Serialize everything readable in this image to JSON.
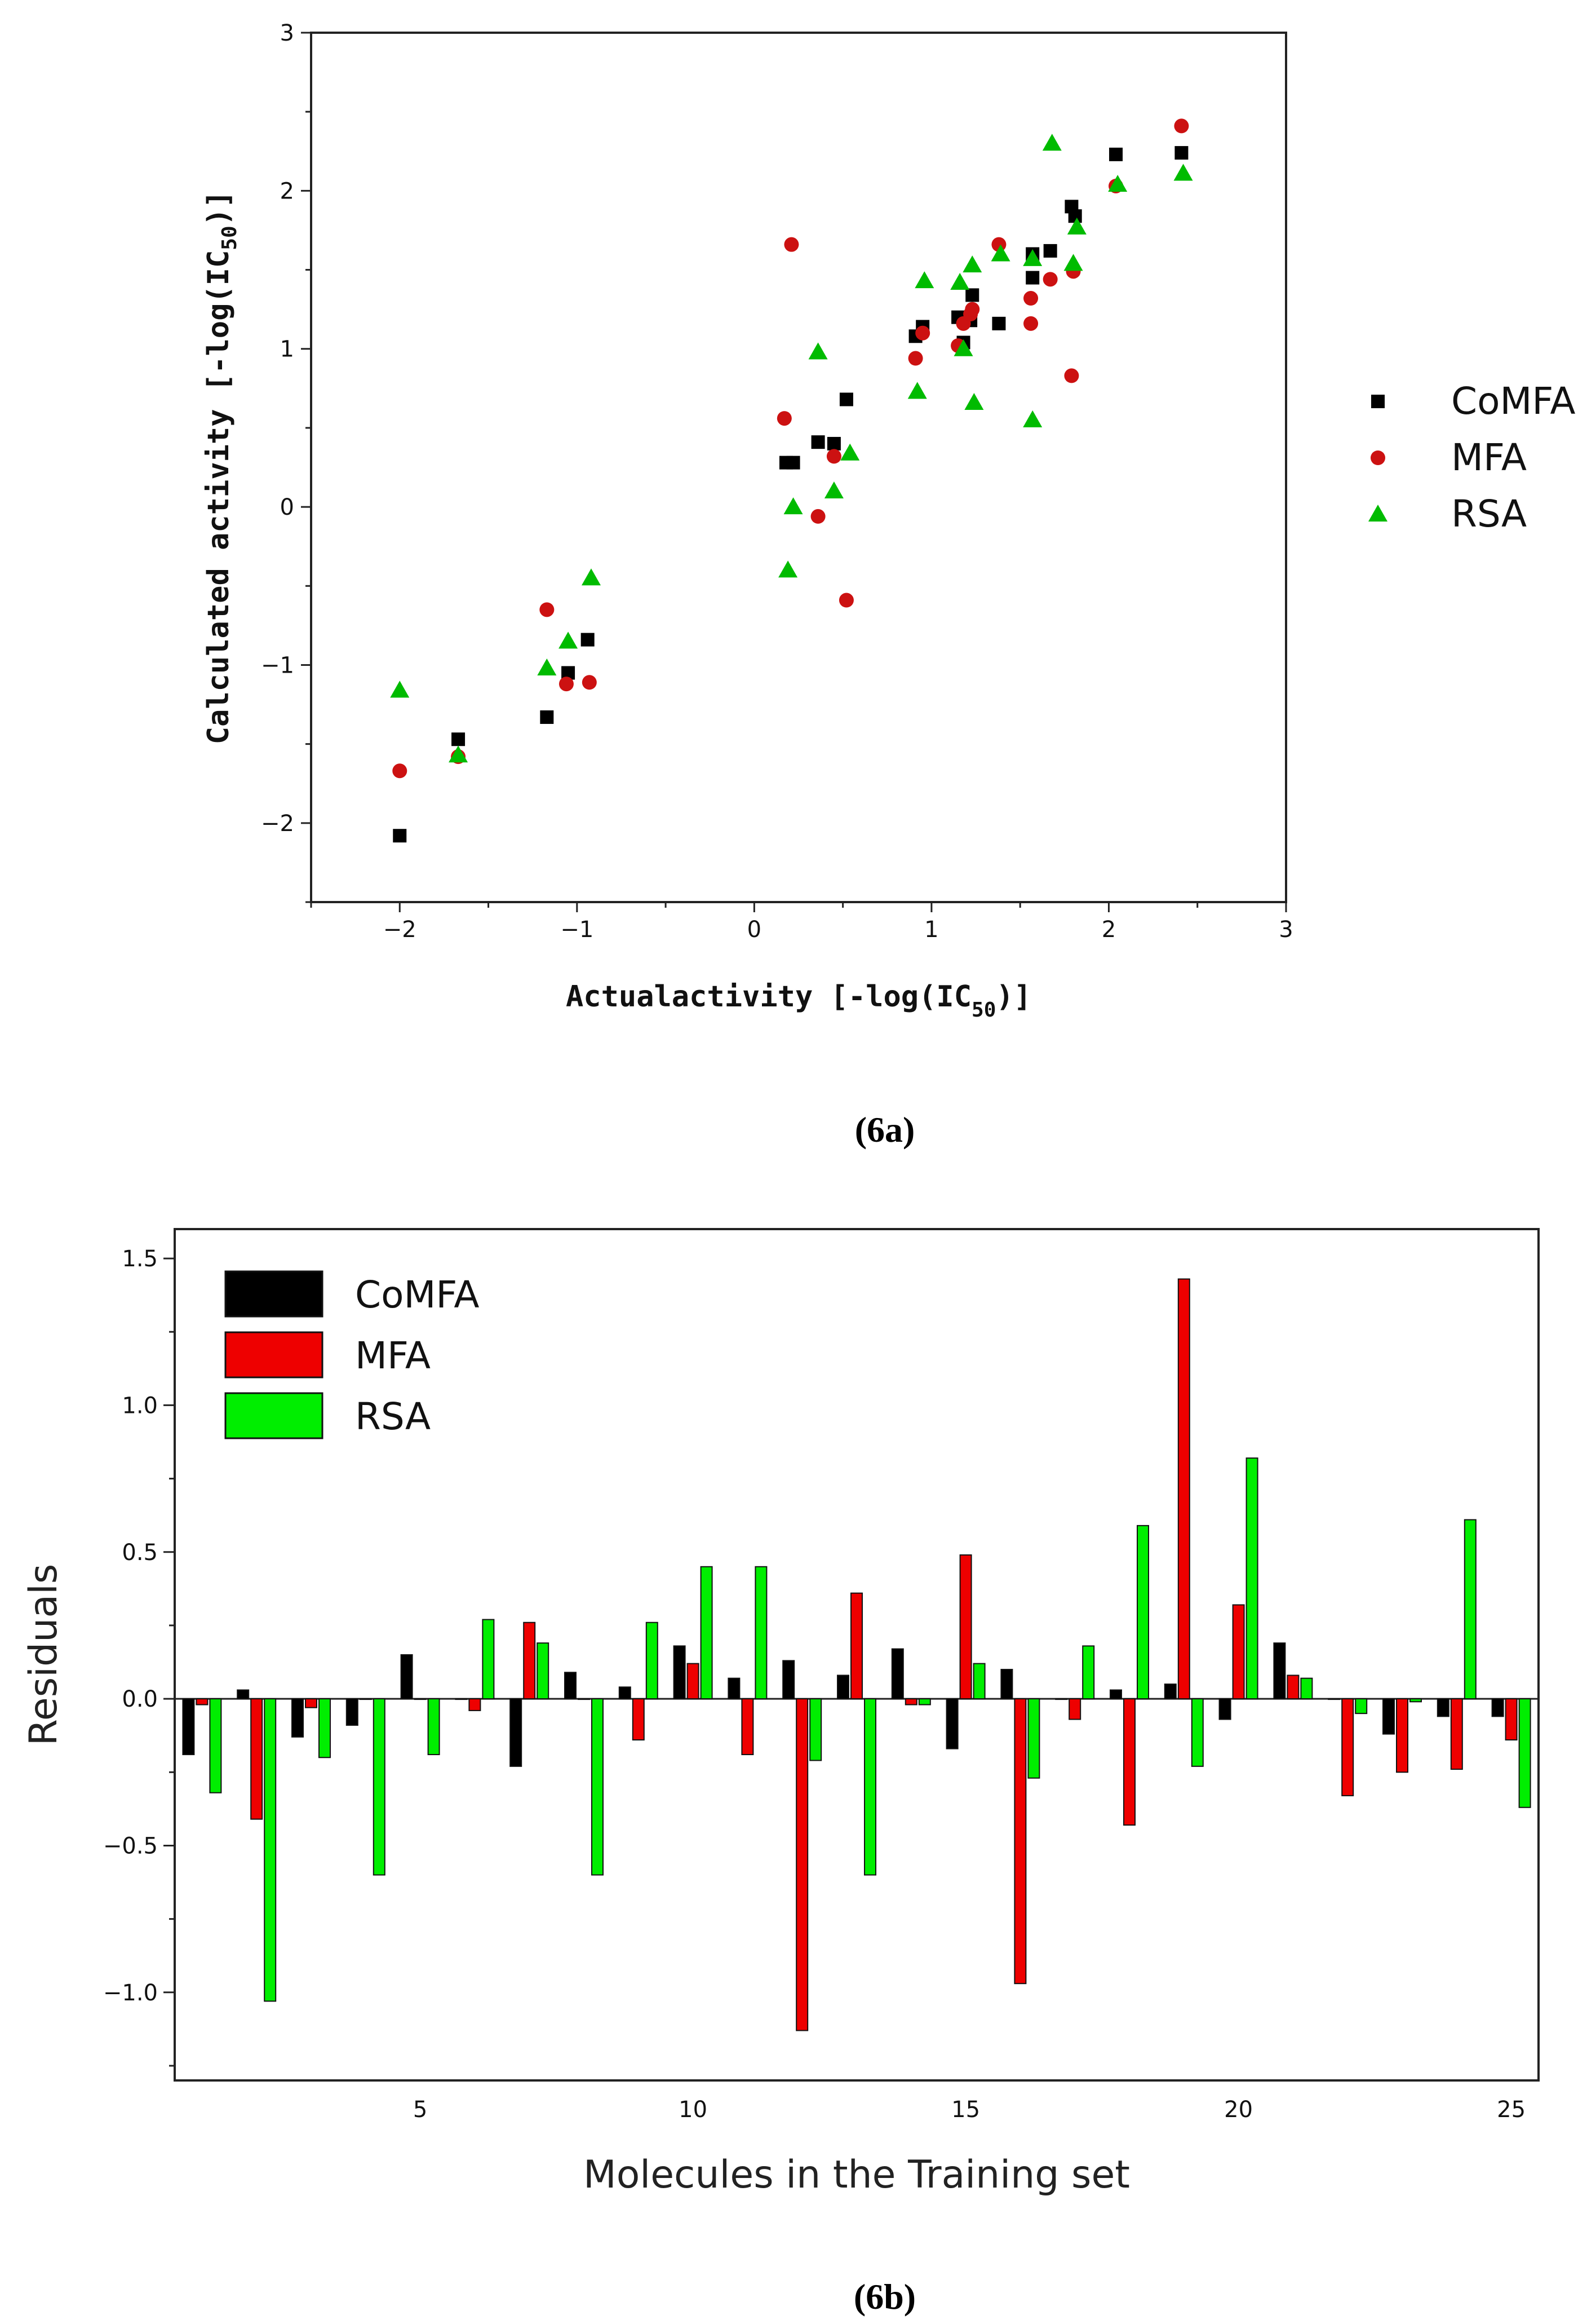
{
  "chart_data": [
    {
      "type": "scatter",
      "caption": "(6a)",
      "xlabel": "Actualactivity [-log(IC",
      "xlabel_sub": "50",
      "xlabel_end": ")]",
      "ylabel": "Calculated activity [-log(IC",
      "ylabel_sub": "50",
      "ylabel_end": ")]",
      "xlim": [
        -2.5,
        3
      ],
      "ylim": [
        -2.5,
        3
      ],
      "xticks": [
        -2,
        -1,
        0,
        1,
        2,
        3
      ],
      "yticks": [
        -2,
        -1,
        0,
        1,
        2,
        3
      ],
      "series": [
        {
          "name": "CoMFA",
          "color": "#000000",
          "marker": "square",
          "points": [
            [
              -2.0,
              -2.08
            ],
            [
              -1.67,
              -1.47
            ],
            [
              -1.17,
              -1.33
            ],
            [
              -1.05,
              -1.05
            ],
            [
              -0.94,
              -0.84
            ],
            [
              0.18,
              0.28
            ],
            [
              0.22,
              0.28
            ],
            [
              0.36,
              0.41
            ],
            [
              0.45,
              0.4
            ],
            [
              0.52,
              0.68
            ],
            [
              0.91,
              1.08
            ],
            [
              0.95,
              1.14
            ],
            [
              1.15,
              1.2
            ],
            [
              1.18,
              1.04
            ],
            [
              1.22,
              1.18
            ],
            [
              1.23,
              1.34
            ],
            [
              1.38,
              1.16
            ],
            [
              1.57,
              1.45
            ],
            [
              1.57,
              1.6
            ],
            [
              1.67,
              1.62
            ],
            [
              1.79,
              1.9
            ],
            [
              1.81,
              1.84
            ],
            [
              2.04,
              2.23
            ],
            [
              2.41,
              2.24
            ]
          ]
        },
        {
          "name": "MFA",
          "color": "#cc1111",
          "marker": "circle",
          "points": [
            [
              -2.0,
              -1.67
            ],
            [
              -1.67,
              -1.58
            ],
            [
              -1.17,
              -0.65
            ],
            [
              -1.06,
              -1.12
            ],
            [
              -0.93,
              -1.11
            ],
            [
              0.17,
              0.56
            ],
            [
              0.21,
              1.66
            ],
            [
              0.36,
              -0.06
            ],
            [
              0.45,
              0.32
            ],
            [
              0.52,
              -0.59
            ],
            [
              0.91,
              0.94
            ],
            [
              0.95,
              1.1
            ],
            [
              1.15,
              1.02
            ],
            [
              1.18,
              1.16
            ],
            [
              1.22,
              1.22
            ],
            [
              1.23,
              1.25
            ],
            [
              1.38,
              1.66
            ],
            [
              1.56,
              1.16
            ],
            [
              1.56,
              1.32
            ],
            [
              1.67,
              1.44
            ],
            [
              1.79,
              0.83
            ],
            [
              1.8,
              1.49
            ],
            [
              2.04,
              2.03
            ],
            [
              2.41,
              2.41
            ]
          ]
        },
        {
          "name": "RSA",
          "color": "#00bb00",
          "marker": "triangle",
          "points": [
            [
              -2.0,
              -1.16
            ],
            [
              -1.67,
              -1.57
            ],
            [
              -1.17,
              -1.02
            ],
            [
              -1.05,
              -0.85
            ],
            [
              -0.92,
              -0.45
            ],
            [
              0.19,
              -0.4
            ],
            [
              0.22,
              0.0
            ],
            [
              0.36,
              0.98
            ],
            [
              0.45,
              0.1
            ],
            [
              0.54,
              0.34
            ],
            [
              0.92,
              0.73
            ],
            [
              0.96,
              1.43
            ],
            [
              1.16,
              1.42
            ],
            [
              1.18,
              1.0
            ],
            [
              1.23,
              1.53
            ],
            [
              1.24,
              0.66
            ],
            [
              1.39,
              1.6
            ],
            [
              1.57,
              0.55
            ],
            [
              1.57,
              1.57
            ],
            [
              1.68,
              2.3
            ],
            [
              1.8,
              1.54
            ],
            [
              1.82,
              1.77
            ],
            [
              2.05,
              2.04
            ],
            [
              2.42,
              2.11
            ]
          ]
        }
      ]
    },
    {
      "type": "bar",
      "caption": "(6b)",
      "xlabel": "Molecules in the Training set",
      "ylabel": "Residuals",
      "ylim": [
        -1.3,
        1.6
      ],
      "yticks": [
        -1.0,
        -0.5,
        0.0,
        0.5,
        1.0,
        1.5
      ],
      "ytick_labels": [
        "-1.0",
        "-0.5",
        "0.0",
        "0.5",
        "1.0",
        "1.5"
      ],
      "xlim": [
        0.5,
        25.5
      ],
      "xticks": [
        5,
        10,
        15,
        20,
        25
      ],
      "categories": [
        1,
        2,
        3,
        4,
        5,
        6,
        7,
        8,
        9,
        10,
        11,
        12,
        13,
        14,
        15,
        16,
        17,
        18,
        19,
        20,
        21,
        22,
        23,
        24,
        25
      ],
      "series": [
        {
          "name": "CoMFA",
          "color": "#000000",
          "values": [
            -0.19,
            0.03,
            -0.13,
            -0.09,
            0.15,
            0.0,
            -0.23,
            0.09,
            0.04,
            0.18,
            0.07,
            0.13,
            0.08,
            0.17,
            -0.17,
            0.1,
            0.0,
            0.03,
            0.05,
            -0.07,
            0.19,
            0.0,
            -0.12,
            -0.06,
            -0.06
          ]
        },
        {
          "name": "MFA",
          "color": "#ee0000",
          "values": [
            -0.02,
            -0.41,
            -0.03,
            0.0,
            0.0,
            -0.04,
            0.26,
            0.0,
            -0.14,
            0.12,
            -0.19,
            -1.13,
            0.36,
            -0.02,
            0.49,
            -0.97,
            -0.07,
            -0.43,
            1.43,
            0.32,
            0.08,
            -0.33,
            -0.25,
            -0.24,
            -0.14
          ]
        },
        {
          "name": "RSA",
          "color": "#00ee00",
          "values": [
            -0.32,
            -1.03,
            -0.2,
            -0.6,
            -0.19,
            0.27,
            0.19,
            -0.6,
            0.26,
            0.45,
            0.45,
            -0.21,
            -0.6,
            -0.02,
            0.12,
            -0.27,
            0.18,
            0.59,
            -0.23,
            0.82,
            0.07,
            -0.05,
            -0.01,
            0.61,
            -0.37
          ]
        }
      ]
    }
  ]
}
